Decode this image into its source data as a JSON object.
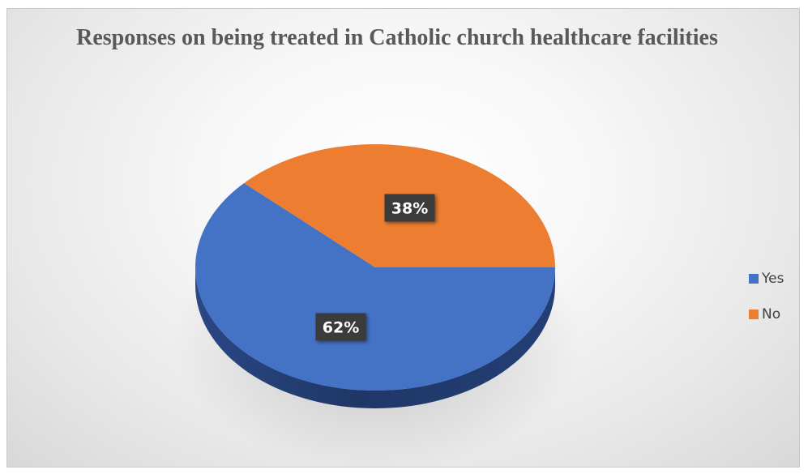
{
  "chart_data": {
    "type": "pie",
    "title": "Responses on being treated in Catholic church healthcare facilities",
    "categories": [
      "Yes",
      "No"
    ],
    "values": [
      62,
      38
    ],
    "labels": [
      "62%",
      "38%"
    ],
    "colors": [
      "#4472C4",
      "#ED7D31"
    ],
    "legend_position": "right",
    "style": "3d"
  }
}
